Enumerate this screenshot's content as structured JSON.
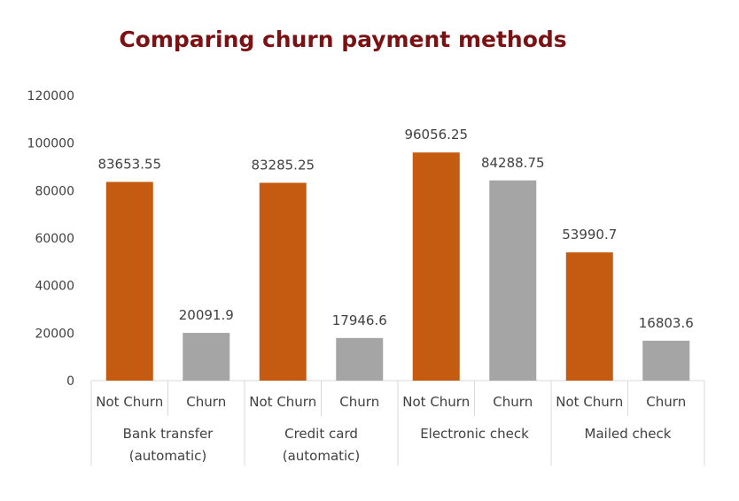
{
  "chart_data": {
    "type": "bar",
    "title": "Comparing churn payment methods",
    "xlabel": "",
    "ylabel": "",
    "ylim": [
      0,
      120000
    ],
    "yticks": [
      0,
      20000,
      40000,
      60000,
      80000,
      100000,
      120000
    ],
    "grid": false,
    "legend": "none",
    "groups": [
      {
        "label_lines": [
          "Bank transfer",
          "(automatic)"
        ],
        "bars": [
          {
            "category": "Not Churn",
            "value": 83653.55,
            "label": "83653.55"
          },
          {
            "category": "Churn",
            "value": 20091.9,
            "label": "20091.9"
          }
        ]
      },
      {
        "label_lines": [
          "Credit card",
          "(automatic)"
        ],
        "bars": [
          {
            "category": "Not Churn",
            "value": 83285.25,
            "label": "83285.25"
          },
          {
            "category": "Churn",
            "value": 17946.6,
            "label": "17946.6"
          }
        ]
      },
      {
        "label_lines": [
          "Electronic check"
        ],
        "bars": [
          {
            "category": "Not Churn",
            "value": 96056.25,
            "label": "96056.25"
          },
          {
            "category": "Churn",
            "value": 84288.75,
            "label": "84288.75"
          }
        ]
      },
      {
        "label_lines": [
          "Mailed check"
        ],
        "bars": [
          {
            "category": "Not Churn",
            "value": 53990.7,
            "label": "53990.7"
          },
          {
            "category": "Churn",
            "value": 16803.6,
            "label": "16803.6"
          }
        ]
      }
    ],
    "colors": {
      "Not Churn": "#c55a11",
      "Churn": "#a5a5a5",
      "title": "#7b1113",
      "axis": "#d9d9d9",
      "text": "#404040"
    }
  }
}
